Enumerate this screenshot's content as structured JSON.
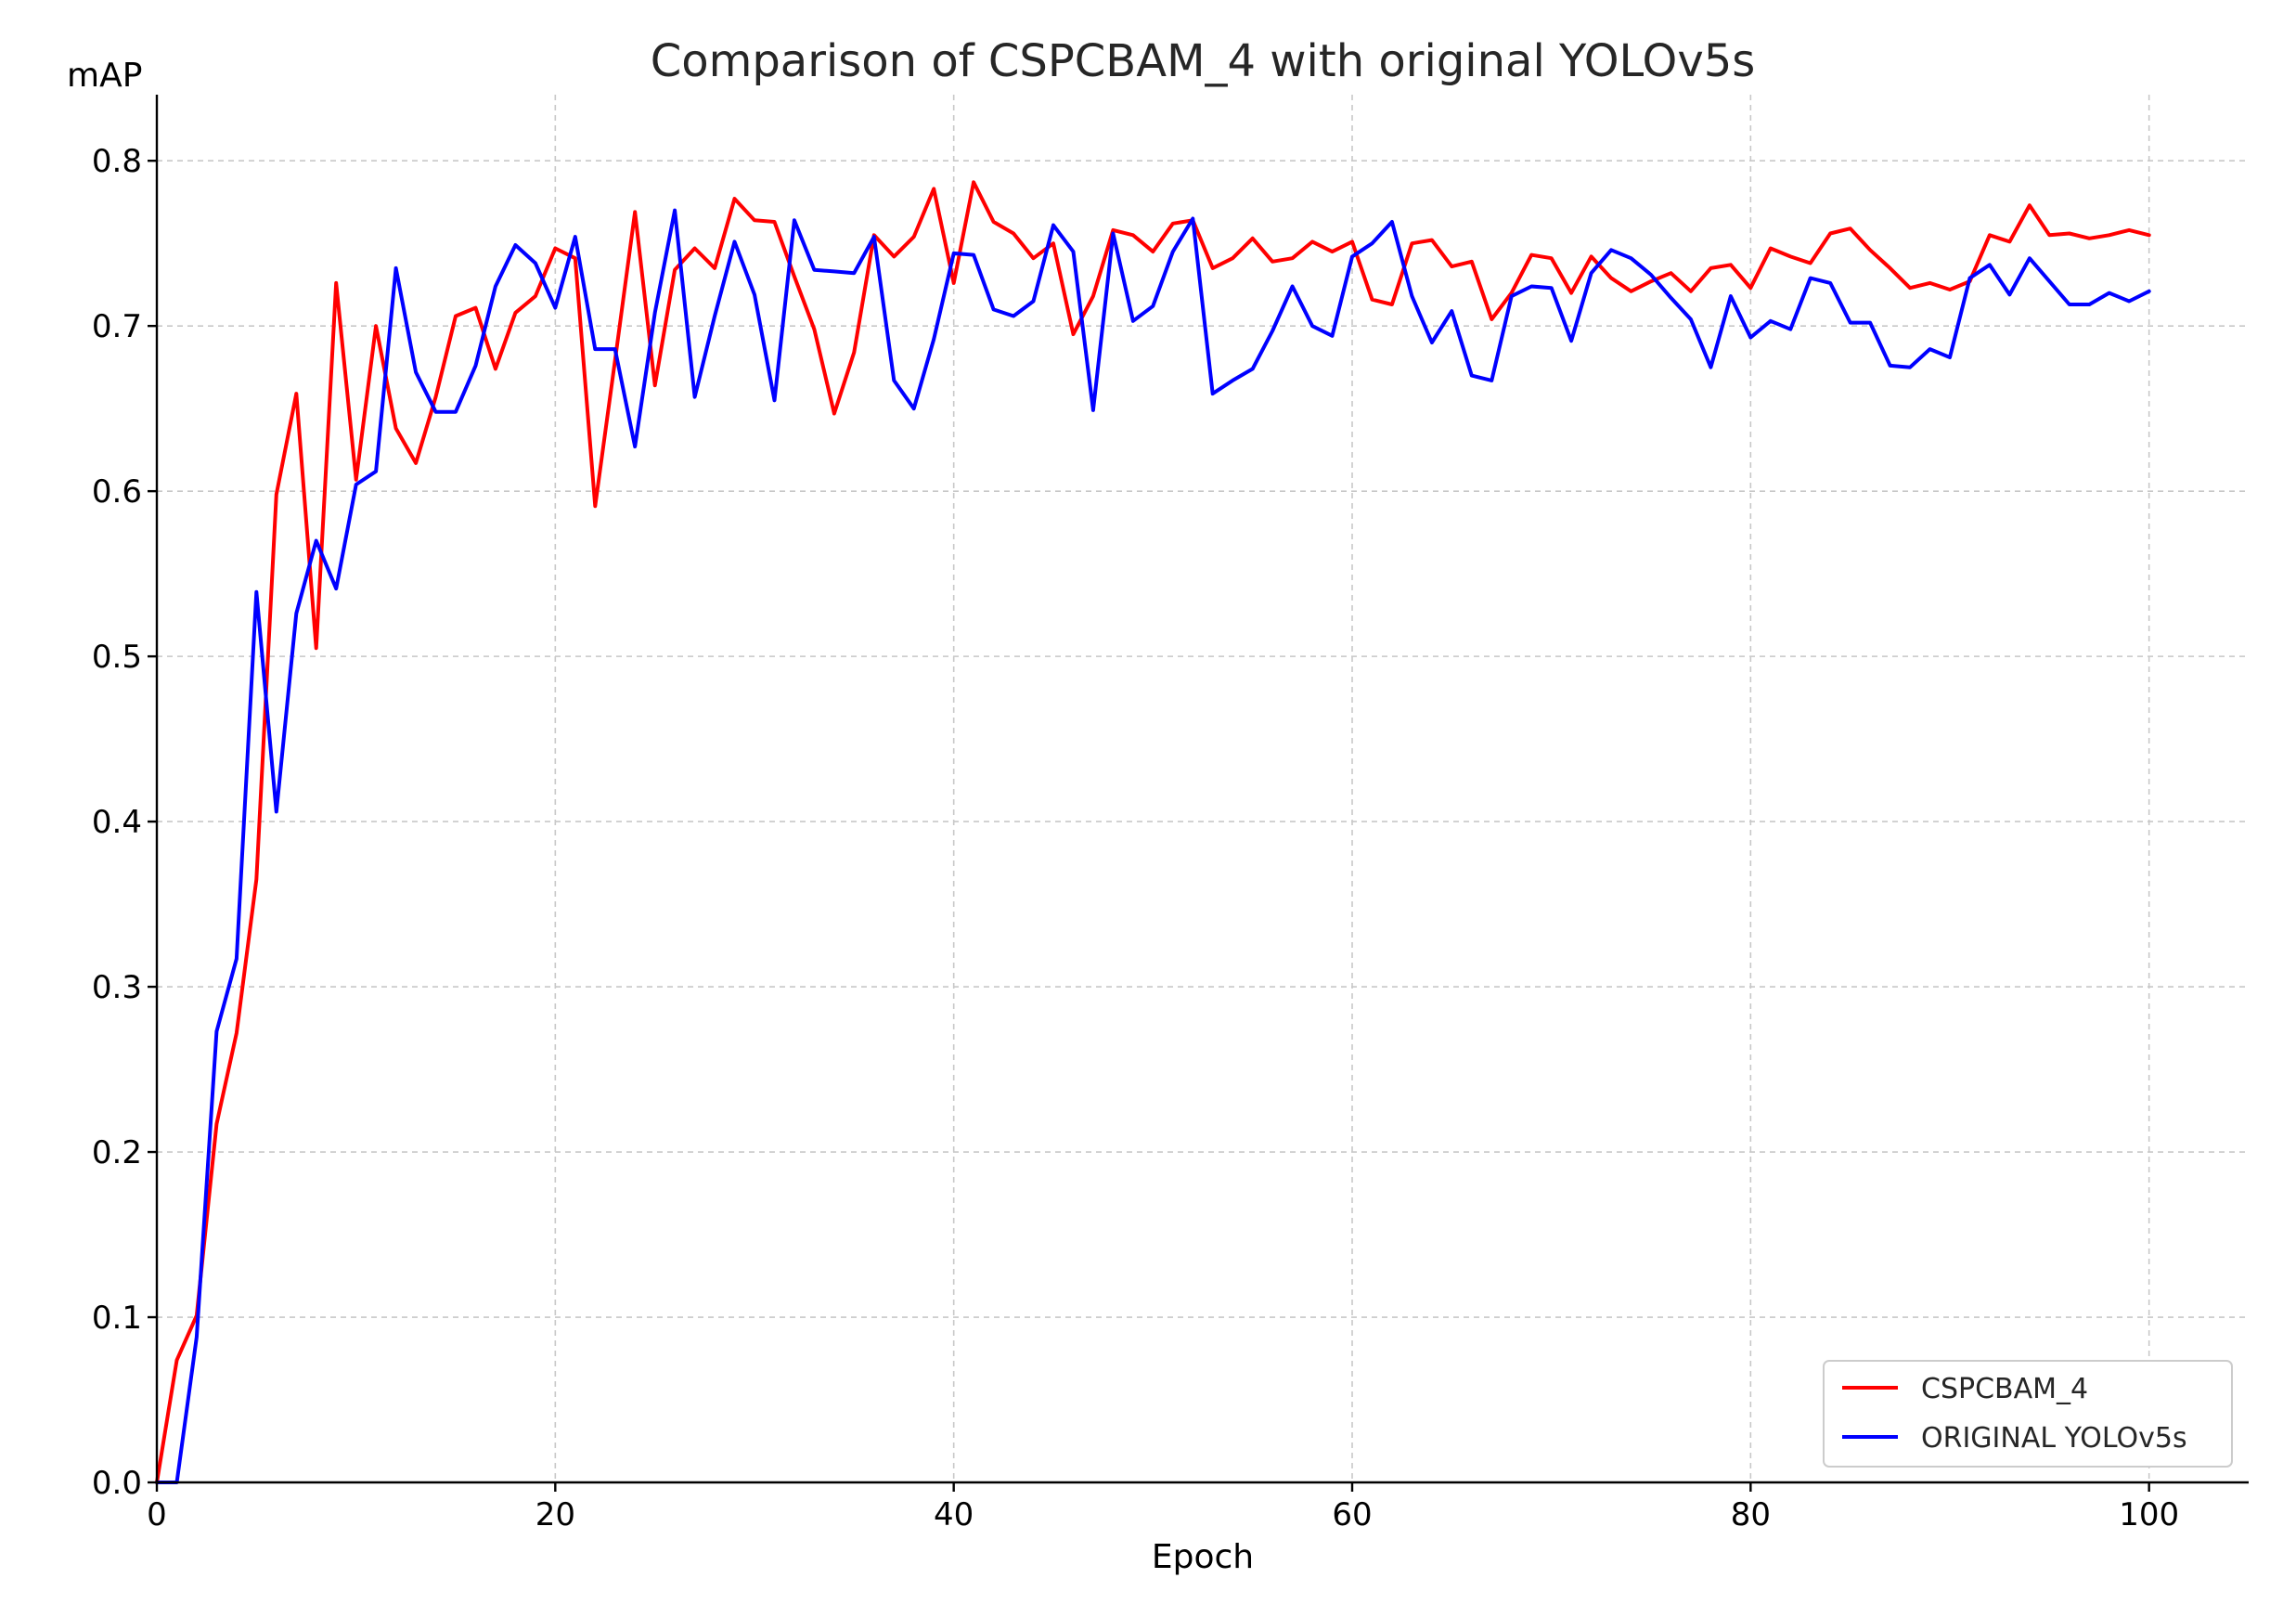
{
  "chart_data": {
    "type": "line",
    "title": "Comparison of CSPCBAM_4 with original YOLOv5s",
    "xlabel": "Epoch",
    "ylabel": "mAP",
    "xlim": [
      0,
      105
    ],
    "ylim": [
      0,
      0.84
    ],
    "xticks": [
      0,
      20,
      40,
      60,
      80,
      100
    ],
    "yticks": [
      0.0,
      0.1,
      0.2,
      0.3,
      0.4,
      0.5,
      0.6,
      0.7,
      0.8
    ],
    "xtick_labels": [
      "0",
      "20",
      "40",
      "60",
      "80",
      "100"
    ],
    "ytick_labels": [
      "0.0",
      "0.1",
      "0.2",
      "0.3",
      "0.4",
      "0.5",
      "0.6",
      "0.7",
      "0.8"
    ],
    "grid": true,
    "legend_position": "bottom-right",
    "series": [
      {
        "name": "CSPCBAM_4",
        "color": "#ff0000",
        "values": [
          0.0,
          0.074,
          0.101,
          0.217,
          0.272,
          0.365,
          0.598,
          0.659,
          0.505,
          0.726,
          0.607,
          0.7,
          0.638,
          0.617,
          0.657,
          0.706,
          0.711,
          0.674,
          0.708,
          0.718,
          0.747,
          0.741,
          0.591,
          0.679,
          0.769,
          0.664,
          0.734,
          0.747,
          0.735,
          0.777,
          0.764,
          0.763,
          0.73,
          0.698,
          0.647,
          0.684,
          0.755,
          0.742,
          0.754,
          0.783,
          0.726,
          0.787,
          0.763,
          0.756,
          0.741,
          0.75,
          0.695,
          0.718,
          0.758,
          0.755,
          0.745,
          0.762,
          0.764,
          0.735,
          0.741,
          0.753,
          0.739,
          0.741,
          0.751,
          0.745,
          0.751,
          0.716,
          0.713,
          0.75,
          0.752,
          0.736,
          0.739,
          0.704,
          0.72,
          0.743,
          0.741,
          0.72,
          0.742,
          0.729,
          0.721,
          0.727,
          0.732,
          0.721,
          0.735,
          0.737,
          0.723,
          0.747,
          0.742,
          0.738,
          0.756,
          0.759,
          0.746,
          0.735,
          0.723,
          0.726,
          0.722,
          0.727,
          0.755,
          0.751,
          0.773,
          0.755,
          0.756,
          0.753,
          0.755,
          0.758,
          0.755
        ]
      },
      {
        "name": "ORIGINAL YOLOv5s",
        "color": "#0000ff",
        "values": [
          0.0,
          0.0,
          0.088,
          0.273,
          0.317,
          0.539,
          0.406,
          0.526,
          0.57,
          0.541,
          0.604,
          0.612,
          0.735,
          0.672,
          0.648,
          0.648,
          0.676,
          0.724,
          0.749,
          0.738,
          0.711,
          0.754,
          0.686,
          0.686,
          0.627,
          0.708,
          0.77,
          0.657,
          0.706,
          0.751,
          0.719,
          0.655,
          0.764,
          0.734,
          0.733,
          0.732,
          0.754,
          0.667,
          0.65,
          0.692,
          0.744,
          0.743,
          0.71,
          0.706,
          0.715,
          0.761,
          0.745,
          0.649,
          0.756,
          0.703,
          0.712,
          0.745,
          0.765,
          0.659,
          0.667,
          0.674,
          0.697,
          0.724,
          0.7,
          0.694,
          0.742,
          0.75,
          0.763,
          0.718,
          0.69,
          0.709,
          0.67,
          0.667,
          0.718,
          0.724,
          0.723,
          0.691,
          0.732,
          0.746,
          0.741,
          0.731,
          0.717,
          0.704,
          0.675,
          0.718,
          0.693,
          0.703,
          0.698,
          0.729,
          0.726,
          0.702,
          0.702,
          0.676,
          0.675,
          0.686,
          0.681,
          0.729,
          0.737,
          0.719,
          0.741,
          0.727,
          0.713,
          0.713,
          0.72,
          0.715,
          0.721
        ]
      }
    ]
  }
}
